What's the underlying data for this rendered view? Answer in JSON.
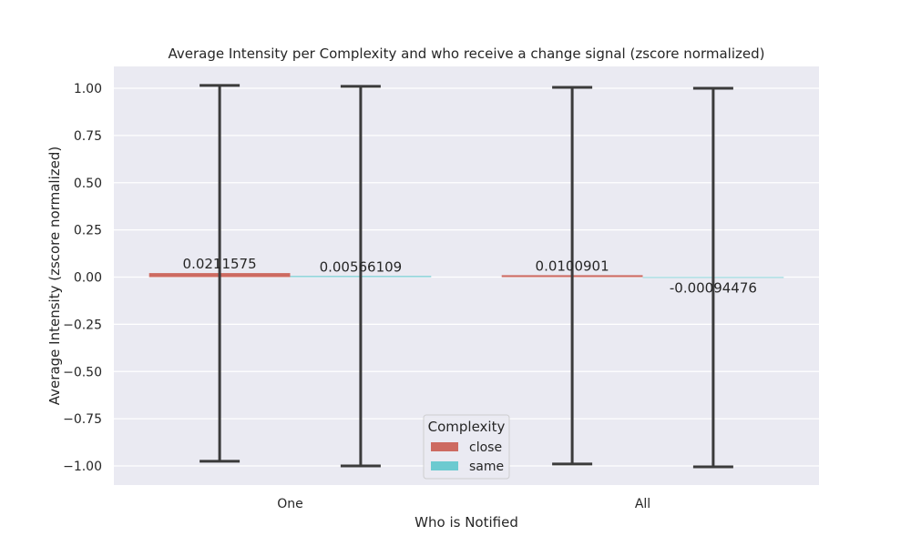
{
  "chart_data": {
    "type": "bar",
    "title": "Average Intensity per Complexity and who receive a change signal (zscore normalized)",
    "xlabel": "Who is Notified",
    "ylabel": "Average Intensity (zscore normalized)",
    "categories": [
      "One",
      "All"
    ],
    "series": [
      {
        "name": "close",
        "color": "#cd6a61",
        "values": [
          0.0211575,
          0.0100901
        ],
        "err_low": [
          -0.975,
          -0.99
        ],
        "err_high": [
          1.015,
          1.005
        ]
      },
      {
        "name": "same",
        "color": "#6ccad0",
        "values": [
          0.00566109,
          -0.00094476
        ],
        "err_low": [
          -1.0,
          -1.005
        ],
        "err_high": [
          1.01,
          1.0
        ]
      }
    ],
    "bar_labels": [
      "0.0211575",
      "0.00566109",
      "0.0100901",
      "-0.00094476"
    ],
    "yticks": [
      1.0,
      0.75,
      0.5,
      0.25,
      0.0,
      -0.25,
      -0.5,
      -0.75,
      -1.0
    ],
    "ytick_labels": [
      "1.00",
      "0.75",
      "0.50",
      "0.25",
      "0.00",
      "−0.25",
      "−0.50",
      "−0.75",
      "−1.00"
    ],
    "ylim": [
      -1.1,
      1.1
    ],
    "grid": true,
    "legend": {
      "title": "Complexity",
      "position": "lower center"
    },
    "background": "#eaeaf2",
    "errorbar_color": "#3b3b3b"
  }
}
